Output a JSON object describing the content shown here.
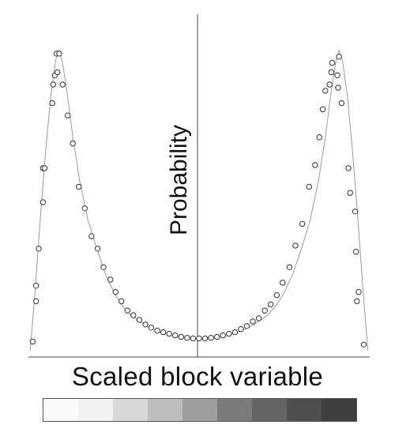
{
  "chart_data": {
    "type": "scatter",
    "title": "",
    "xlabel": "Scaled block variable",
    "ylabel": "Probability",
    "xlim": [
      -1,
      1
    ],
    "ylim": [
      0,
      1
    ],
    "grid": false,
    "legend": "none",
    "series": [
      {
        "points": [
          {
            "x": -0.975,
            "y": 0.05
          },
          {
            "x": -0.955,
            "y": 0.18
          },
          {
            "x": -0.955,
            "y": 0.23
          },
          {
            "x": -0.94,
            "y": 0.35
          },
          {
            "x": -0.915,
            "y": 0.5
          },
          {
            "x": -0.915,
            "y": 0.61
          },
          {
            "x": -0.905,
            "y": 0.61
          },
          {
            "x": -0.86,
            "y": 0.82
          },
          {
            "x": -0.855,
            "y": 0.88
          },
          {
            "x": -0.845,
            "y": 0.91
          },
          {
            "x": -0.835,
            "y": 0.98
          },
          {
            "x": -0.82,
            "y": 0.98
          },
          {
            "x": -0.83,
            "y": 0.92
          },
          {
            "x": -0.8,
            "y": 0.88
          },
          {
            "x": -0.77,
            "y": 0.78
          },
          {
            "x": -0.74,
            "y": 0.69
          },
          {
            "x": -0.705,
            "y": 0.55
          },
          {
            "x": -0.67,
            "y": 0.48
          },
          {
            "x": -0.63,
            "y": 0.39
          },
          {
            "x": -0.595,
            "y": 0.35
          },
          {
            "x": -0.56,
            "y": 0.29
          },
          {
            "x": -0.52,
            "y": 0.25
          },
          {
            "x": -0.49,
            "y": 0.21
          },
          {
            "x": -0.455,
            "y": 0.18
          },
          {
            "x": -0.42,
            "y": 0.15
          },
          {
            "x": -0.385,
            "y": 0.135
          },
          {
            "x": -0.35,
            "y": 0.12
          },
          {
            "x": -0.315,
            "y": 0.105
          },
          {
            "x": -0.28,
            "y": 0.095
          },
          {
            "x": -0.245,
            "y": 0.085
          },
          {
            "x": -0.21,
            "y": 0.08
          },
          {
            "x": -0.175,
            "y": 0.075
          },
          {
            "x": -0.14,
            "y": 0.07
          },
          {
            "x": -0.105,
            "y": 0.065
          },
          {
            "x": -0.07,
            "y": 0.062
          },
          {
            "x": -0.035,
            "y": 0.06
          },
          {
            "x": 0.0,
            "y": 0.06
          },
          {
            "x": 0.035,
            "y": 0.06
          },
          {
            "x": 0.07,
            "y": 0.062
          },
          {
            "x": 0.105,
            "y": 0.065
          },
          {
            "x": 0.14,
            "y": 0.07
          },
          {
            "x": 0.175,
            "y": 0.075
          },
          {
            "x": 0.21,
            "y": 0.08
          },
          {
            "x": 0.245,
            "y": 0.09
          },
          {
            "x": 0.28,
            "y": 0.1
          },
          {
            "x": 0.315,
            "y": 0.115
          },
          {
            "x": 0.35,
            "y": 0.125
          },
          {
            "x": 0.385,
            "y": 0.15
          },
          {
            "x": 0.42,
            "y": 0.17
          },
          {
            "x": 0.455,
            "y": 0.2
          },
          {
            "x": 0.49,
            "y": 0.24
          },
          {
            "x": 0.53,
            "y": 0.29
          },
          {
            "x": 0.565,
            "y": 0.36
          },
          {
            "x": 0.605,
            "y": 0.43
          },
          {
            "x": 0.645,
            "y": 0.55
          },
          {
            "x": 0.68,
            "y": 0.62
          },
          {
            "x": 0.705,
            "y": 0.71
          },
          {
            "x": 0.725,
            "y": 0.8
          },
          {
            "x": 0.74,
            "y": 0.86
          },
          {
            "x": 0.765,
            "y": 0.88
          },
          {
            "x": 0.775,
            "y": 0.92
          },
          {
            "x": 0.78,
            "y": 0.95
          },
          {
            "x": 0.82,
            "y": 0.97
          },
          {
            "x": 0.81,
            "y": 0.91
          },
          {
            "x": 0.815,
            "y": 0.87
          },
          {
            "x": 0.835,
            "y": 0.82
          },
          {
            "x": 0.875,
            "y": 0.61
          },
          {
            "x": 0.885,
            "y": 0.53
          },
          {
            "x": 0.915,
            "y": 0.47
          },
          {
            "x": 0.92,
            "y": 0.34
          },
          {
            "x": 0.925,
            "y": 0.18
          },
          {
            "x": 0.935,
            "y": 0.21
          },
          {
            "x": 0.965,
            "y": 0.04
          }
        ]
      }
    ],
    "curve": {
      "x": [
        -0.99,
        -0.96,
        -0.93,
        -0.9,
        -0.87,
        -0.84,
        -0.82,
        -0.8,
        -0.77,
        -0.74,
        -0.7,
        -0.65,
        -0.6,
        -0.55,
        -0.5,
        -0.45,
        -0.4,
        -0.35,
        -0.3,
        -0.25,
        -0.2,
        -0.15,
        -0.1,
        -0.05,
        0.0,
        0.05,
        0.1,
        0.15,
        0.2,
        0.25,
        0.3,
        0.35,
        0.4,
        0.45,
        0.5,
        0.55,
        0.6,
        0.65,
        0.7,
        0.74,
        0.77,
        0.8,
        0.82,
        0.84,
        0.87,
        0.9,
        0.93,
        0.96,
        0.99
      ],
      "y": [
        0.02,
        0.22,
        0.45,
        0.66,
        0.84,
        0.96,
        0.99,
        0.95,
        0.84,
        0.71,
        0.57,
        0.44,
        0.35,
        0.27,
        0.21,
        0.165,
        0.135,
        0.115,
        0.098,
        0.085,
        0.075,
        0.068,
        0.063,
        0.06,
        0.059,
        0.06,
        0.063,
        0.068,
        0.075,
        0.085,
        0.098,
        0.115,
        0.135,
        0.165,
        0.21,
        0.27,
        0.35,
        0.44,
        0.57,
        0.71,
        0.84,
        0.95,
        0.99,
        0.96,
        0.84,
        0.66,
        0.45,
        0.22,
        0.02
      ]
    },
    "colorbar": [
      "#fafafa",
      "#f2f2f2",
      "#d8d8d8",
      "#bdbdbd",
      "#9e9e9e",
      "#7b7b7b",
      "#656565",
      "#4f4f4f",
      "#3f3f3f"
    ]
  }
}
